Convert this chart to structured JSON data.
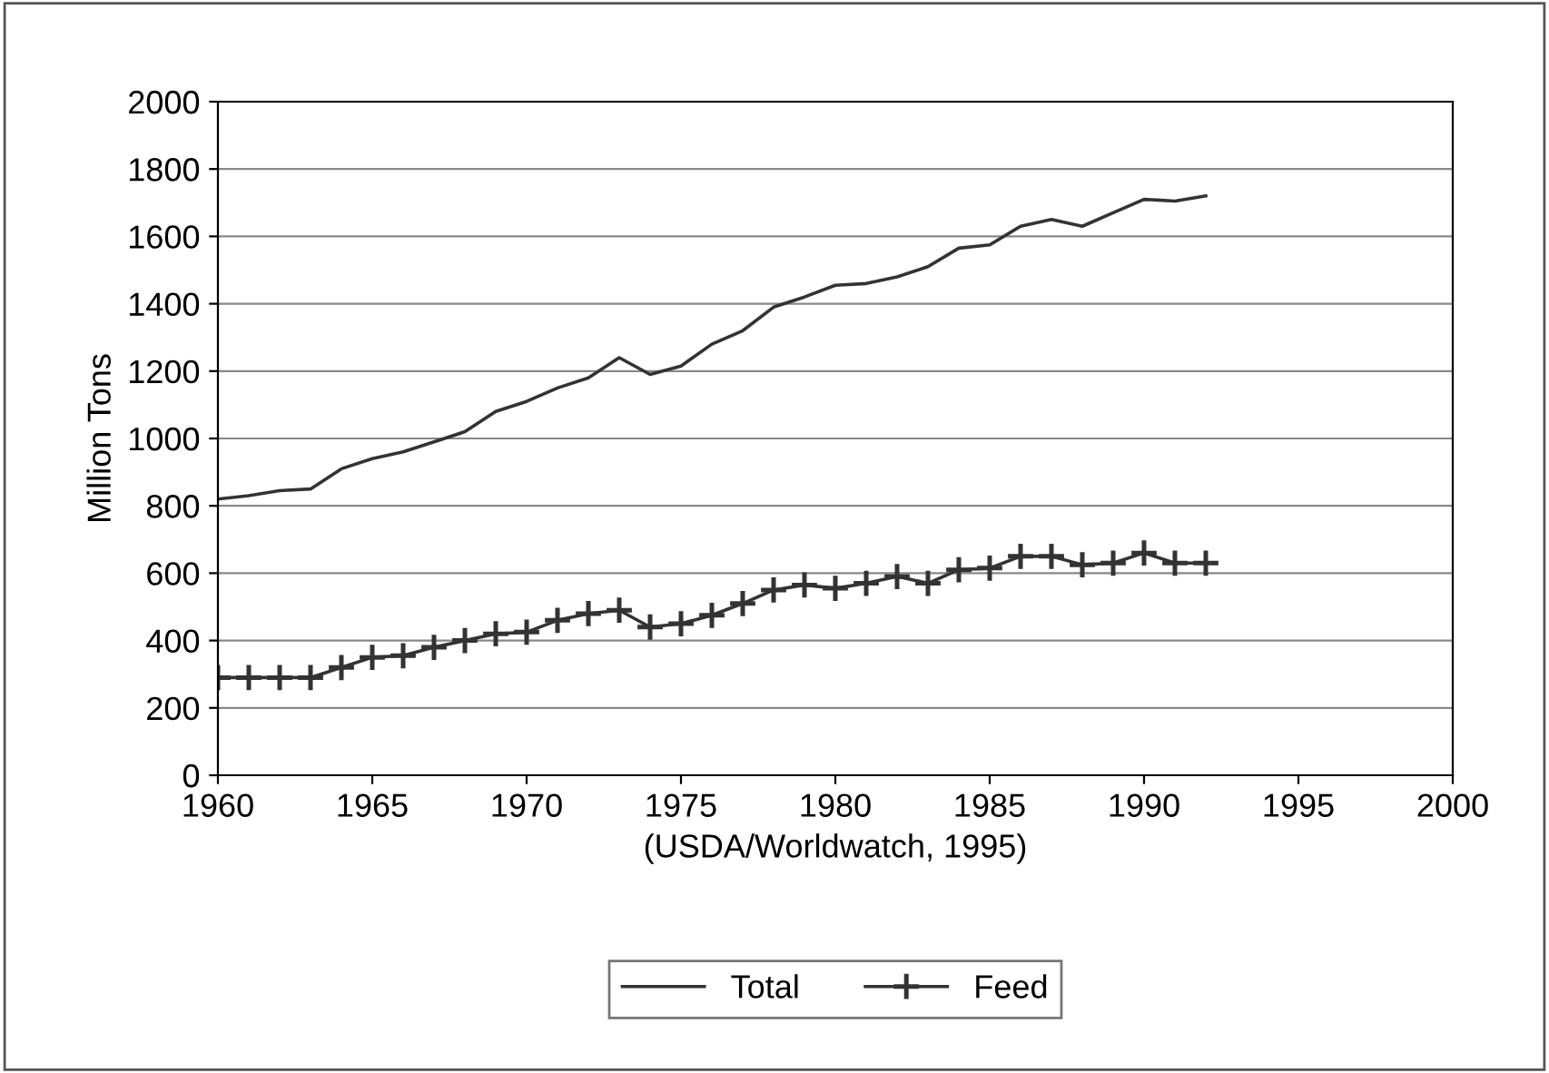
{
  "chart_data": {
    "type": "line",
    "ylabel": "Million Tons",
    "xlabel": "(USDA/Worldwatch, 1995)",
    "x": [
      1960,
      1961,
      1962,
      1963,
      1964,
      1965,
      1966,
      1967,
      1968,
      1969,
      1970,
      1971,
      1972,
      1973,
      1974,
      1975,
      1976,
      1977,
      1978,
      1979,
      1980,
      1981,
      1982,
      1983,
      1984,
      1985,
      1986,
      1987,
      1988,
      1989,
      1990,
      1991,
      1992
    ],
    "series": [
      {
        "name": "Total",
        "color": "#333333",
        "marker": "none",
        "values": [
          820,
          830,
          845,
          850,
          910,
          940,
          960,
          990,
          1020,
          1080,
          1110,
          1150,
          1180,
          1240,
          1190,
          1215,
          1280,
          1320,
          1390,
          1420,
          1455,
          1460,
          1480,
          1510,
          1565,
          1575,
          1630,
          1650,
          1630,
          1670,
          1710,
          1705,
          1720
        ]
      },
      {
        "name": "Feed",
        "color": "#333333",
        "marker": "cross",
        "values": [
          290,
          290,
          290,
          290,
          320,
          350,
          355,
          380,
          400,
          420,
          425,
          460,
          480,
          490,
          440,
          450,
          475,
          510,
          550,
          565,
          555,
          570,
          590,
          570,
          610,
          615,
          650,
          650,
          625,
          630,
          660,
          630,
          630
        ]
      }
    ],
    "xlim": [
      1960,
      2000
    ],
    "xticks": [
      1960,
      1965,
      1970,
      1975,
      1980,
      1985,
      1990,
      1995,
      2000
    ],
    "ylim": [
      0,
      2000
    ],
    "yticks": [
      0,
      200,
      400,
      600,
      800,
      1000,
      1200,
      1400,
      1600,
      1800,
      2000
    ],
    "grid": "y",
    "legend": "bottom"
  }
}
